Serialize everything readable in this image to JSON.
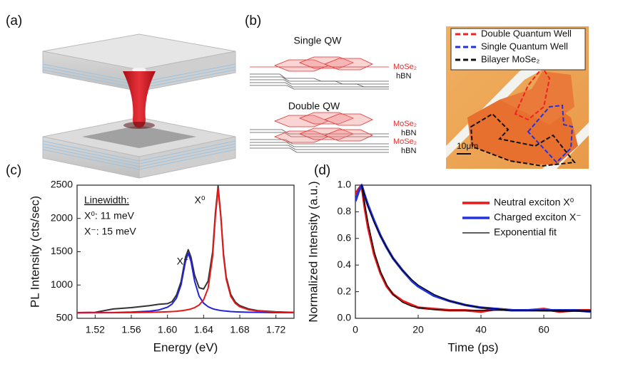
{
  "panels": {
    "a": "(a)",
    "b": "(b)",
    "c": "(c)",
    "d": "(d)"
  },
  "stacks": {
    "single_title": "Single QW",
    "single_labels": [
      "MoSe₂",
      "hBN"
    ],
    "double_title": "Double QW",
    "double_labels": [
      "MoSe₂",
      "hBN",
      "MoSe₂",
      "hBN"
    ]
  },
  "micrograph": {
    "legend": [
      {
        "name": "Double Quantum Well",
        "color": "#ee2222"
      },
      {
        "name": "Single Quantum Well",
        "color": "#2233dd"
      },
      {
        "name": "Bilayer MoSe₂",
        "color": "#111111"
      }
    ],
    "scale": "10μm"
  },
  "chart_data": [
    {
      "type": "line",
      "xlabel": "Energy (eV)",
      "ylabel": "PL Intensity (cts/sec)",
      "annotations": [
        "Linewidth:",
        "X⁰: 11 meV",
        "X⁻: 15 meV",
        "X⁻",
        "X⁰"
      ],
      "x": [
        1.5,
        1.52,
        1.54,
        1.56,
        1.58,
        1.59,
        1.6,
        1.605,
        1.61,
        1.615,
        1.62,
        1.623,
        1.626,
        1.63,
        1.635,
        1.64,
        1.645,
        1.65,
        1.653,
        1.656,
        1.659,
        1.662,
        1.665,
        1.67,
        1.675,
        1.68,
        1.69,
        1.7,
        1.72,
        1.74
      ],
      "series": [
        {
          "color": "#333333",
          "values": [
            585,
            590,
            640,
            660,
            690,
            710,
            720,
            750,
            850,
            1050,
            1420,
            1530,
            1420,
            1150,
            960,
            940,
            1060,
            1500,
            2080,
            2490,
            2050,
            1470,
            1120,
            860,
            745,
            690,
            640,
            615,
            598,
            590
          ]
        },
        {
          "color": "#2222dd",
          "values": [
            583,
            585,
            587,
            593,
            607,
            624,
            666,
            713,
            805,
            1001,
            1356,
            1480,
            1356,
            1061,
            833,
            727,
            674,
            644,
            633,
            624,
            617,
            612,
            608,
            602,
            598,
            595,
            591,
            589,
            585,
            584
          ]
        },
        {
          "color": "#e81818",
          "values": [
            582,
            583,
            584,
            586,
            590,
            593,
            598,
            601,
            606,
            613,
            623,
            631,
            641,
            660,
            700,
            778,
            954,
            1434,
            2022,
            2450,
            2022,
            1434,
            1088,
            830,
            725,
            673,
            628,
            609,
            594,
            588
          ]
        }
      ],
      "xlim": [
        1.5,
        1.74
      ],
      "xticks": [
        1.52,
        1.56,
        {
          "value": 1.6,
          "label": "1.60"
        },
        1.64,
        1.68,
        1.72
      ],
      "ylim": [
        500,
        2500
      ],
      "yticks": [
        500,
        1000,
        1500,
        2000,
        2500
      ]
    },
    {
      "type": "line",
      "xlabel": "Time (ps)",
      "ylabel": "Normalized Intensity (a.u.)",
      "legend": "upper right",
      "x": [
        0,
        1,
        2,
        3,
        4,
        6,
        8,
        10,
        12,
        15,
        18,
        20,
        25,
        30,
        35,
        40,
        45,
        50,
        55,
        60,
        65,
        70,
        75
      ],
      "series": [
        {
          "name": "Neutral exciton X⁰",
          "color": "#e81818",
          "width": 3.5,
          "values": [
            0.93,
            0.97,
            1.0,
            0.83,
            0.69,
            0.48,
            0.34,
            0.24,
            0.18,
            0.13,
            0.1,
            0.08,
            0.07,
            0.06,
            0.06,
            0.05,
            0.07,
            0.06,
            0.06,
            0.07,
            0.05,
            0.06,
            0.06
          ]
        },
        {
          "name": "Charged exciton X⁻",
          "color": "#2233dd",
          "width": 3.5,
          "values": [
            0.88,
            0.95,
            1.0,
            0.92,
            0.85,
            0.73,
            0.62,
            0.53,
            0.45,
            0.36,
            0.28,
            0.24,
            0.17,
            0.13,
            0.1,
            0.08,
            0.07,
            0.06,
            0.06,
            0.06,
            0.06,
            0.06,
            0.05
          ]
        },
        {
          "name": "Exponential fit",
          "color": "#000000",
          "width": 1.3,
          "values": [
            null,
            null,
            1.0,
            0.85,
            0.72,
            0.5,
            0.35,
            0.25,
            0.18,
            0.12,
            0.09,
            0.08,
            0.065,
            0.06,
            0.06,
            0.06,
            0.06,
            0.06,
            0.06,
            0.06,
            0.06,
            0.06,
            0.06
          ]
        },
        {
          "color": "#000000",
          "width": 1.3,
          "values": [
            null,
            null,
            1.0,
            0.92,
            0.84,
            0.72,
            0.62,
            0.53,
            0.45,
            0.36,
            0.29,
            0.25,
            0.18,
            0.13,
            0.1,
            0.08,
            0.07,
            0.06,
            0.06,
            0.055,
            0.053,
            0.052,
            0.051
          ]
        }
      ],
      "xlim": [
        0,
        75
      ],
      "xticks": [
        0,
        20,
        40,
        60
      ],
      "ylim": [
        0,
        1
      ],
      "yticks": [
        {
          "value": 0,
          "label": "0.0"
        },
        0.2,
        0.4,
        0.6,
        0.8,
        {
          "value": 1,
          "label": "1.0"
        }
      ]
    }
  ]
}
